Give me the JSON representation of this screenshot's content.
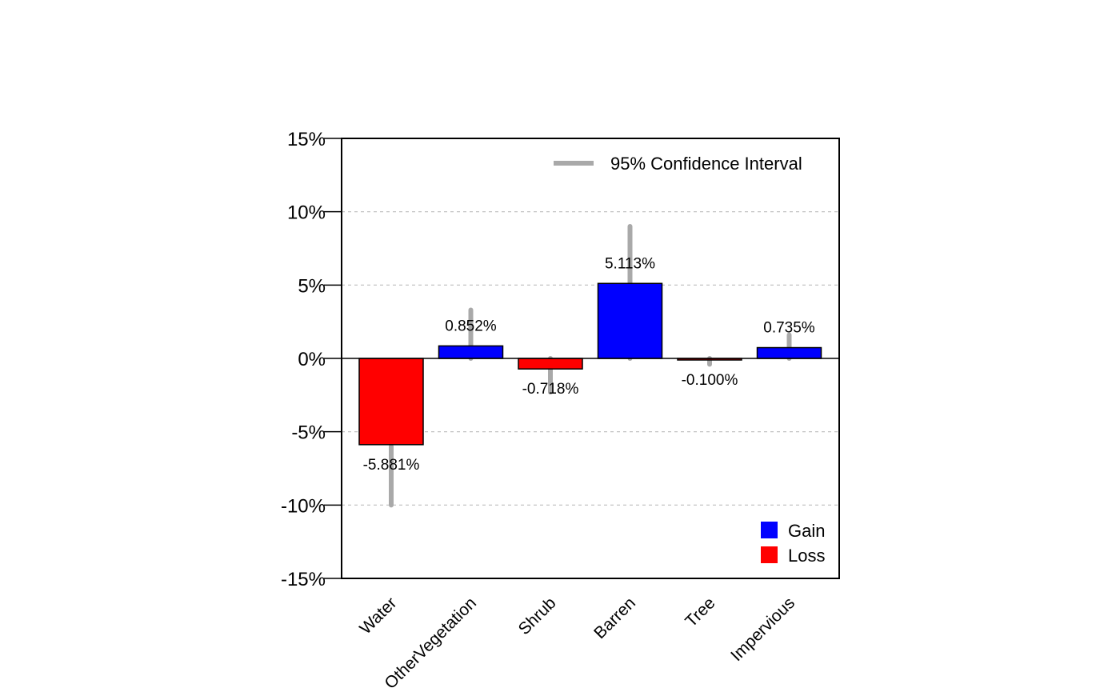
{
  "chart_data": {
    "type": "bar",
    "categories": [
      "Water",
      "OtherVegetation",
      "Shrub",
      "Barren",
      "Tree",
      "Impervious"
    ],
    "values": [
      -5.881,
      0.852,
      -0.718,
      5.113,
      -0.1,
      0.735
    ],
    "value_labels": [
      "-5.881%",
      "0.852%",
      "-0.718%",
      "5.113%",
      "-0.100%",
      "0.735%"
    ],
    "ci": [
      [
        -10.0,
        -6.0
      ],
      [
        0.0,
        3.3
      ],
      [
        -2.3,
        0.0
      ],
      [
        0.0,
        9.0
      ],
      [
        -0.4,
        0.0
      ],
      [
        0.0,
        1.6
      ]
    ],
    "ylim": [
      -15,
      15
    ],
    "yticks": [
      -15,
      -10,
      -5,
      0,
      5,
      10,
      15
    ],
    "ytick_labels": [
      "-15%",
      "-10%",
      "-5%",
      "0%",
      "5%",
      "10%",
      "15%"
    ],
    "grid": "horizontal dashed",
    "colors": {
      "gain": "#0000ff",
      "loss": "#ff0000",
      "ci": "#a9a9a9",
      "grid": "#bdbdbd"
    },
    "legend": {
      "placement": "bottom-right",
      "entries": [
        {
          "label": "Gain",
          "color": "#0000ff"
        },
        {
          "label": "Loss",
          "color": "#ff0000"
        }
      ]
    },
    "ci_legend": {
      "placement": "top-right",
      "label": "95% Confidence Interval"
    }
  }
}
